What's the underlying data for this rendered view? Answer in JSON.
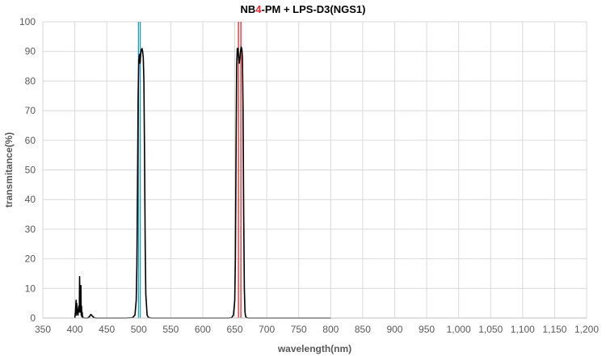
{
  "title": {
    "pre": "NB",
    "accent": "4",
    "post": "-PM + LPS-D3(NGS1)",
    "accent_color": "#e8262b"
  },
  "chart_data": {
    "type": "line",
    "title": "NB4-PM + LPS-D3(NGS1)",
    "xlabel": "wavelength(nm)",
    "ylabel": "transmitance(%)",
    "xlim": [
      350,
      1200
    ],
    "ylim": [
      0,
      100
    ],
    "xticks": [
      350,
      400,
      450,
      500,
      550,
      600,
      650,
      700,
      750,
      800,
      850,
      900,
      950,
      1000,
      1050,
      1100,
      1150,
      1200
    ],
    "xtick_labels": [
      "350",
      "400",
      "450",
      "500",
      "550",
      "600",
      "650",
      "700",
      "750",
      "800",
      "850",
      "900",
      "950",
      "1,000",
      "1,050",
      "1,100",
      "1,150",
      "1,200"
    ],
    "yticks": [
      0,
      10,
      20,
      30,
      40,
      50,
      60,
      70,
      80,
      90,
      100
    ],
    "grid": true,
    "legend": "none",
    "series": [
      {
        "color": "#000000",
        "x": [
          400,
          401,
          402,
          402.5,
          403,
          403.5,
          404,
          405,
          406,
          407,
          407.5,
          408,
          408.5,
          409,
          409.5,
          410,
          410.5,
          411,
          411.5,
          412,
          413,
          415,
          420,
          423,
          425,
          427,
          429,
          431,
          433,
          440,
          480,
          490,
          494,
          496,
          497,
          498,
          499,
          500,
          501,
          502,
          503,
          504,
          505,
          506,
          507,
          508,
          509,
          510,
          511,
          513,
          515,
          520,
          640,
          645,
          648,
          650,
          651,
          652,
          653,
          654,
          655,
          656,
          657,
          658,
          659,
          660,
          661,
          662,
          663,
          664,
          665,
          666,
          667,
          669,
          672,
          680,
          800
        ],
        "y": [
          0,
          2,
          6,
          1,
          5,
          2,
          3,
          1,
          4,
          2,
          14,
          3,
          10,
          2,
          11,
          1,
          4,
          0.5,
          2,
          0.3,
          0.2,
          0,
          0,
          0.5,
          1.2,
          0.8,
          0.3,
          0.1,
          0,
          0,
          0,
          0.1,
          1,
          6,
          18,
          45,
          75,
          87,
          89,
          86,
          89,
          90.5,
          91,
          90,
          88,
          80,
          55,
          25,
          8,
          1,
          0.2,
          0,
          0,
          0.1,
          1,
          6,
          20,
          55,
          85,
          91,
          91,
          88,
          86,
          88,
          90,
          91.5,
          91,
          88,
          70,
          35,
          10,
          2,
          0.5,
          0.1,
          0,
          0,
          0
        ]
      }
    ],
    "markers": [
      {
        "x": 499.5,
        "color": "#1f9bc8"
      },
      {
        "x": 502.3,
        "color": "#1f9bc8"
      },
      {
        "x": 655.8,
        "color": "#e8262b"
      },
      {
        "x": 659.6,
        "color": "#e8262b"
      }
    ]
  }
}
